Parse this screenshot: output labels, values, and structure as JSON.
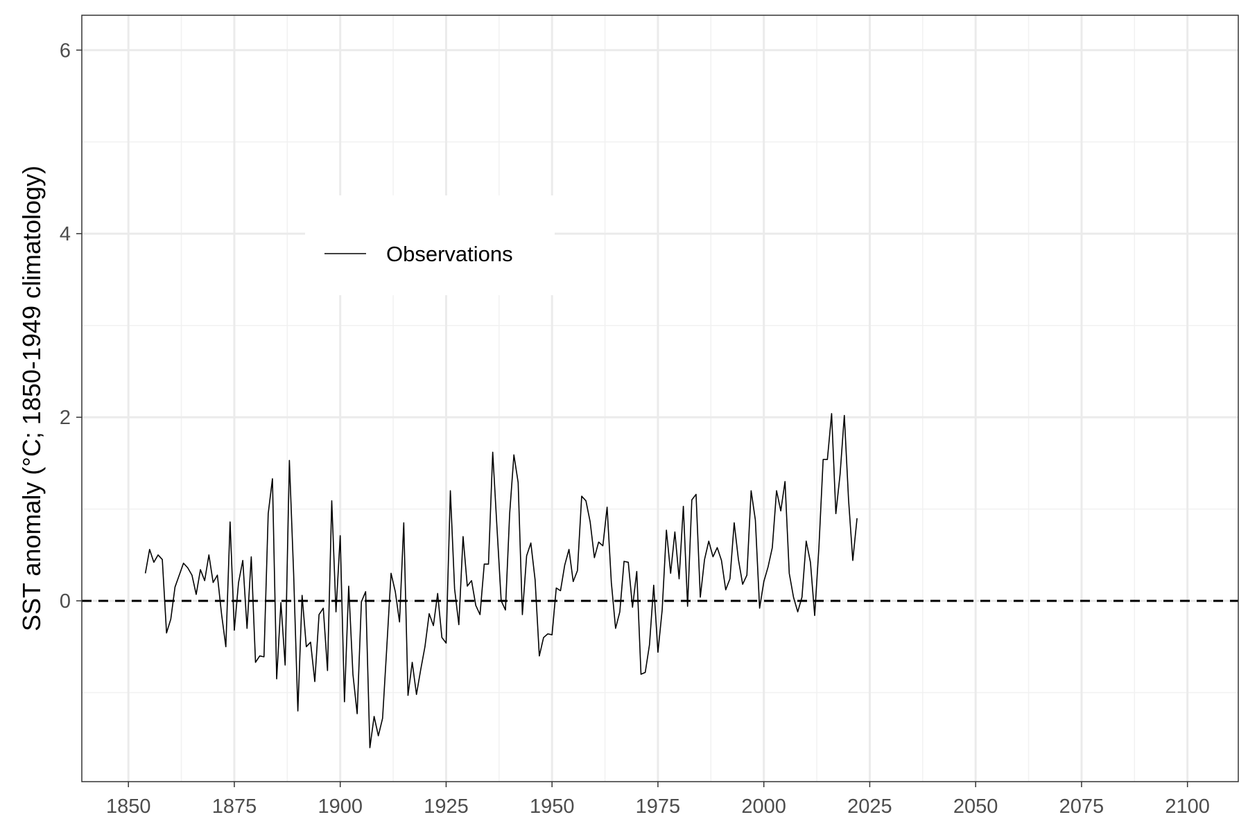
{
  "chart_data": {
    "type": "line",
    "title": "",
    "xlabel": "",
    "ylabel": "SST anomaly (°C; 1850-1949 climatology)",
    "xlim": [
      1839,
      2112
    ],
    "ylim": [
      -1.97,
      6.38
    ],
    "x_ticks": [
      1850,
      1875,
      1900,
      1925,
      1950,
      1975,
      2000,
      2025,
      2050,
      2075,
      2100
    ],
    "y_ticks": [
      0,
      2,
      4,
      6
    ],
    "x_minor_grid": [
      1862.5,
      1887.5,
      1912.5,
      1937.5,
      1962.5,
      1987.5,
      2012.5,
      2037.5,
      2062.5,
      2087.5
    ],
    "y_minor_grid": [
      -1,
      1,
      3,
      5
    ],
    "grid": true,
    "reference_line": {
      "y": 0,
      "style": "dashed",
      "color": "#000000"
    },
    "legend": {
      "position": "top-left",
      "entries": [
        "Observations"
      ]
    },
    "series": [
      {
        "name": "Observations",
        "color": "#000000",
        "x": [
          1854,
          1855,
          1856,
          1857,
          1858,
          1859,
          1860,
          1861,
          1862,
          1863,
          1864,
          1865,
          1866,
          1867,
          1868,
          1869,
          1870,
          1871,
          1872,
          1873,
          1874,
          1875,
          1876,
          1877,
          1878,
          1879,
          1880,
          1881,
          1882,
          1883,
          1884,
          1885,
          1886,
          1887,
          1888,
          1889,
          1890,
          1891,
          1892,
          1893,
          1894,
          1895,
          1896,
          1897,
          1898,
          1899,
          1900,
          1901,
          1902,
          1903,
          1904,
          1905,
          1906,
          1907,
          1908,
          1909,
          1910,
          1911,
          1912,
          1913,
          1914,
          1915,
          1916,
          1917,
          1918,
          1919,
          1920,
          1921,
          1922,
          1923,
          1924,
          1925,
          1926,
          1927,
          1928,
          1929,
          1930,
          1931,
          1932,
          1933,
          1934,
          1935,
          1936,
          1937,
          1938,
          1939,
          1940,
          1941,
          1942,
          1943,
          1944,
          1945,
          1946,
          1947,
          1948,
          1949,
          1950,
          1951,
          1952,
          1953,
          1954,
          1955,
          1956,
          1957,
          1958,
          1959,
          1960,
          1961,
          1962,
          1963,
          1964,
          1965,
          1966,
          1967,
          1968,
          1969,
          1970,
          1971,
          1972,
          1973,
          1974,
          1975,
          1976,
          1977,
          1978,
          1979,
          1980,
          1981,
          1982,
          1983,
          1984,
          1985,
          1986,
          1987,
          1988,
          1989,
          1990,
          1991,
          1992,
          1993,
          1994,
          1995,
          1996,
          1997,
          1998,
          1999,
          2000,
          2001,
          2002,
          2003,
          2004,
          2005,
          2006,
          2007,
          2008,
          2009,
          2010,
          2011,
          2012,
          2013,
          2014,
          2015,
          2016,
          2017,
          2018,
          2019,
          2020,
          2021,
          2022
        ],
        "values": [
          0.3,
          0.56,
          0.42,
          0.5,
          0.45,
          -0.35,
          -0.2,
          0.15,
          0.28,
          0.41,
          0.36,
          0.28,
          0.07,
          0.34,
          0.22,
          0.5,
          0.2,
          0.28,
          -0.15,
          -0.5,
          0.86,
          -0.32,
          0.2,
          0.44,
          -0.3,
          0.48,
          -0.67,
          -0.6,
          -0.61,
          0.95,
          1.33,
          -0.85,
          -0.02,
          -0.7,
          1.53,
          0.3,
          -1.2,
          0.06,
          -0.5,
          -0.45,
          -0.88,
          -0.15,
          -0.08,
          -0.76,
          1.09,
          -0.12,
          0.71,
          -1.1,
          0.16,
          -0.8,
          -1.23,
          -0.01,
          0.1,
          -1.6,
          -1.26,
          -1.47,
          -1.28,
          -0.5,
          0.3,
          0.1,
          -0.23,
          0.85,
          -1.03,
          -0.67,
          -1.02,
          -0.75,
          -0.5,
          -0.14,
          -0.27,
          0.08,
          -0.4,
          -0.46,
          1.2,
          0.13,
          -0.26,
          0.7,
          0.16,
          0.22,
          -0.05,
          -0.15,
          0.4,
          0.4,
          1.62,
          0.8,
          0.0,
          -0.1,
          0.95,
          1.59,
          1.29,
          -0.15,
          0.49,
          0.63,
          0.23,
          -0.6,
          -0.4,
          -0.36,
          -0.37,
          0.14,
          0.11,
          0.39,
          0.56,
          0.21,
          0.33,
          1.14,
          1.09,
          0.86,
          0.47,
          0.64,
          0.6,
          1.02,
          0.2,
          -0.3,
          -0.12,
          0.43,
          0.42,
          -0.07,
          0.32,
          -0.8,
          -0.78,
          -0.48,
          0.17,
          -0.56,
          -0.1,
          0.77,
          0.3,
          0.75,
          0.24,
          1.03,
          -0.06,
          1.1,
          1.16,
          0.04,
          0.45,
          0.65,
          0.48,
          0.58,
          0.44,
          0.12,
          0.24,
          0.85,
          0.45,
          0.18,
          0.28,
          1.2,
          0.88,
          -0.08,
          0.21,
          0.37,
          0.58,
          1.2,
          0.98,
          1.3,
          0.3,
          0.04,
          -0.12,
          0.04,
          0.65,
          0.42,
          -0.16,
          0.58,
          1.54,
          1.54,
          2.04,
          0.95,
          1.38,
          2.02,
          1.1,
          0.44,
          0.9
        ]
      }
    ]
  }
}
